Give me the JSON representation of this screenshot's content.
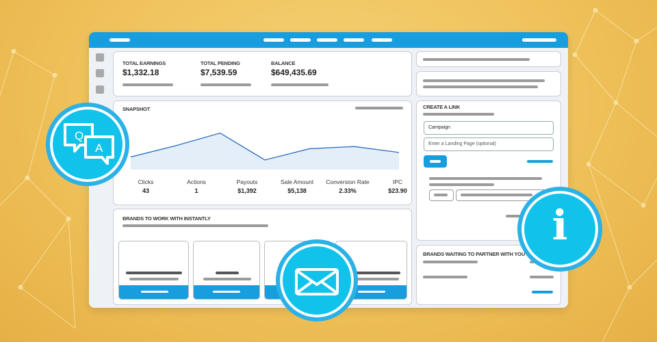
{
  "summary": {
    "items": [
      {
        "label": "TOTAL EARNINGS",
        "value": "$1,332.18"
      },
      {
        "label": "TOTAL PENDING",
        "value": "$7,539.59"
      },
      {
        "label": "BALANCE",
        "value": "$649,435.69"
      }
    ]
  },
  "snapshot": {
    "title": "SNAPSHOT",
    "stats": [
      {
        "label": "Clicks",
        "value": "43"
      },
      {
        "label": "Actions",
        "value": "1"
      },
      {
        "label": "Payouts",
        "value": "$1,392"
      },
      {
        "label": "Sale Amount",
        "value": "$5,138"
      },
      {
        "label": "Conversion Rate",
        "value": "2.33%"
      },
      {
        "label": "IPC",
        "value": "$23.90"
      }
    ]
  },
  "chart_data": {
    "type": "area",
    "values": [
      17,
      32,
      49,
      13,
      28,
      31,
      23
    ],
    "color": "#2a6fba",
    "fill": "#e3eef9",
    "grid": false
  },
  "brands": {
    "title": "BRANDS TO WORK WITH INSTANTLY"
  },
  "create_link": {
    "title": "CREATE A LINK",
    "campaign_value": "Campaign",
    "landing_placeholder": "Enter a Landing Page (optional)"
  },
  "brands_waiting": {
    "title": "BRANDS WAITING TO PARTNER WITH YOU"
  },
  "icons": {
    "qa": {
      "q": "Q",
      "a": "A"
    },
    "info": "i"
  },
  "colors": {
    "accent": "#189ddf",
    "badge": "#11c3ea",
    "background": "#efc15a"
  }
}
